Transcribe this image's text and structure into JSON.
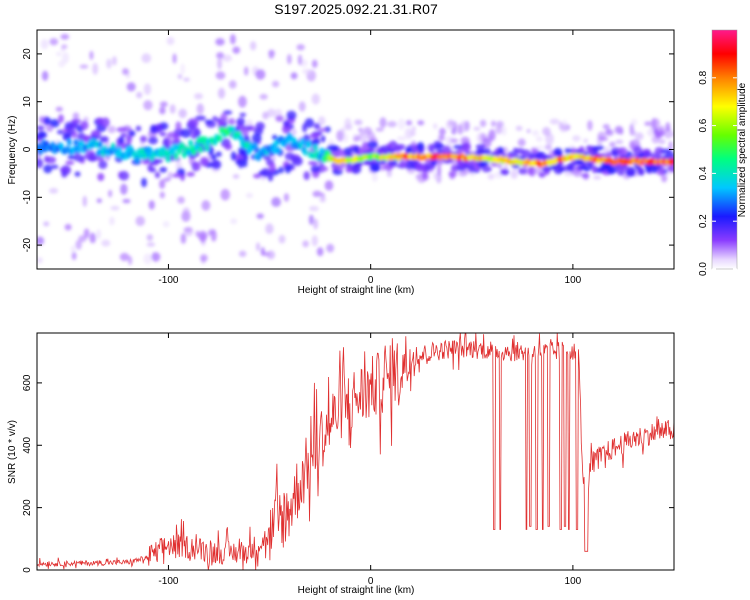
{
  "title": "S197.2025.092.21.31.R07",
  "chart_data": [
    {
      "type": "heatmap",
      "xlabel": "Height of straight line (km)",
      "ylabel": "Frequency (Hz)",
      "xlim": [
        -165,
        150
      ],
      "ylim": [
        -25,
        25
      ],
      "x_ticks": [
        "-100",
        "0",
        "100"
      ],
      "y_ticks": [
        "-20",
        "-10",
        "0",
        "10",
        "20"
      ],
      "colorbar": {
        "label": "Normalized spectral amplitude",
        "range": [
          0,
          1
        ],
        "ticks": [
          "0.0",
          "0.2",
          "0.4",
          "0.6",
          "0.8"
        ],
        "colormap": "rainbow (violet low to magenta high)"
      },
      "ridge": [
        {
          "x": -160,
          "freq": 0.5,
          "amp": 0.3
        },
        {
          "x": -140,
          "freq": 0.8,
          "amp": 0.35
        },
        {
          "x": -120,
          "freq": -1.0,
          "amp": 0.4
        },
        {
          "x": -100,
          "freq": -1.0,
          "amp": 0.4
        },
        {
          "x": -80,
          "freq": 1.5,
          "amp": 0.45
        },
        {
          "x": -70,
          "freq": 4.0,
          "amp": 0.5
        },
        {
          "x": -55,
          "freq": -1.0,
          "amp": 0.35
        },
        {
          "x": -40,
          "freq": 2.0,
          "amp": 0.35
        },
        {
          "x": -25,
          "freq": -1.0,
          "amp": 0.4
        },
        {
          "x": -15,
          "freq": -2.5,
          "amp": 0.85
        },
        {
          "x": 0,
          "freq": -1.5,
          "amp": 0.6
        },
        {
          "x": 20,
          "freq": -1.5,
          "amp": 0.9
        },
        {
          "x": 40,
          "freq": -1.5,
          "amp": 0.95
        },
        {
          "x": 60,
          "freq": -2.0,
          "amp": 0.7
        },
        {
          "x": 85,
          "freq": -3.0,
          "amp": 0.9
        },
        {
          "x": 100,
          "freq": -1.5,
          "amp": 0.8
        },
        {
          "x": 120,
          "freq": -2.5,
          "amp": 0.95
        },
        {
          "x": 140,
          "freq": -2.5,
          "amp": 0.95
        }
      ]
    },
    {
      "type": "line",
      "xlabel": "Height of straight line (km)",
      "ylabel": "SNR (10 * v/v)",
      "xlim": [
        -165,
        150
      ],
      "ylim": [
        0,
        760
      ],
      "x_ticks": [
        "-100",
        "0",
        "100"
      ],
      "y_ticks": [
        "0",
        "200",
        "400",
        "600"
      ],
      "color": "#e03030",
      "x": [
        -165,
        -140,
        -120,
        -110,
        -100,
        -90,
        -80,
        -70,
        -60,
        -50,
        -40,
        -35,
        -30,
        -25,
        -20,
        -15,
        -10,
        -5,
        0,
        10,
        20,
        30,
        40,
        50,
        60,
        70,
        80,
        90,
        100,
        103,
        105,
        110,
        120,
        130,
        140,
        150
      ],
      "y": [
        20,
        22,
        25,
        40,
        80,
        75,
        60,
        55,
        60,
        110,
        200,
        280,
        350,
        420,
        470,
        520,
        540,
        560,
        580,
        620,
        680,
        700,
        710,
        710,
        705,
        700,
        700,
        700,
        705,
        680,
        260,
        350,
        390,
        420,
        440,
        450
      ],
      "dropouts": [
        {
          "x": 61,
          "y": 130
        },
        {
          "x": 64,
          "y": 130
        },
        {
          "x": 77,
          "y": 130
        },
        {
          "x": 79,
          "y": 140
        },
        {
          "x": 82,
          "y": 130
        },
        {
          "x": 85,
          "y": 130
        },
        {
          "x": 88,
          "y": 140
        },
        {
          "x": 94,
          "y": 130
        },
        {
          "x": 96,
          "y": 140
        },
        {
          "x": 98,
          "y": 130
        },
        {
          "x": 102,
          "y": 130
        },
        {
          "x": 106,
          "y": 60
        },
        {
          "x": 107,
          "y": 60
        }
      ]
    }
  ]
}
